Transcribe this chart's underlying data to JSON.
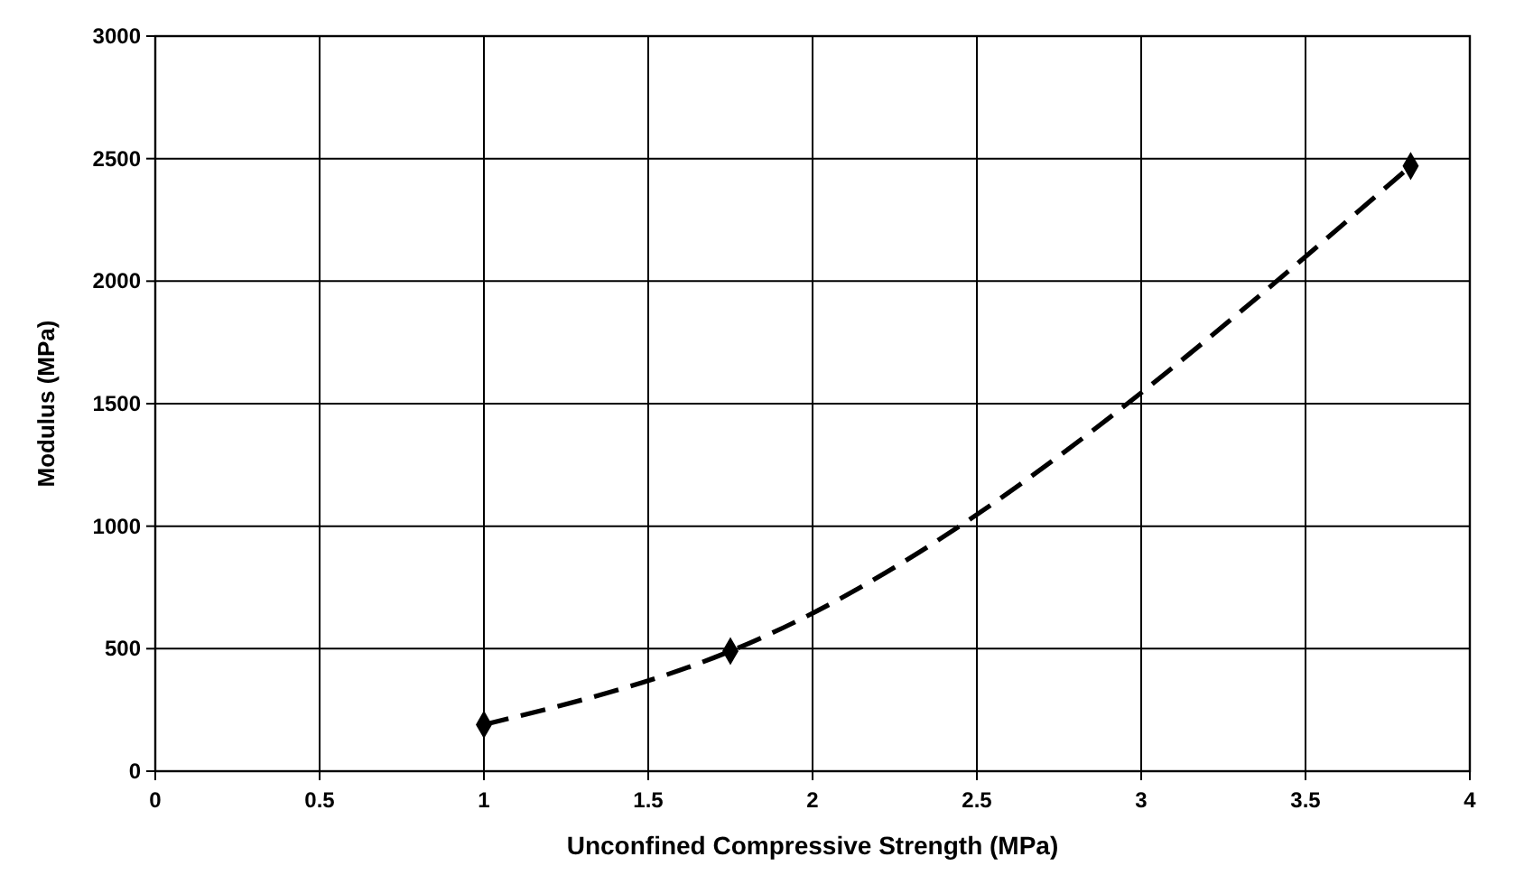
{
  "chart_data": {
    "type": "line",
    "xlabel": "Unconfined Compressive Strength (MPa)",
    "ylabel": "Modulus (MPa)",
    "x": [
      1,
      1.75,
      3.82
    ],
    "series": [
      {
        "color": "#000000",
        "values": [
          190,
          490,
          2470
        ]
      }
    ],
    "xlim": [
      0,
      4
    ],
    "xticks": [
      0,
      0.5,
      1,
      1.5,
      2,
      2.5,
      3,
      3.5,
      4
    ],
    "ylim": [
      0,
      3000
    ],
    "yticks": [
      0,
      500,
      1000,
      1500,
      2000,
      2500,
      3000
    ],
    "grid": true,
    "marker": "diamond",
    "line_style": "dashed"
  }
}
